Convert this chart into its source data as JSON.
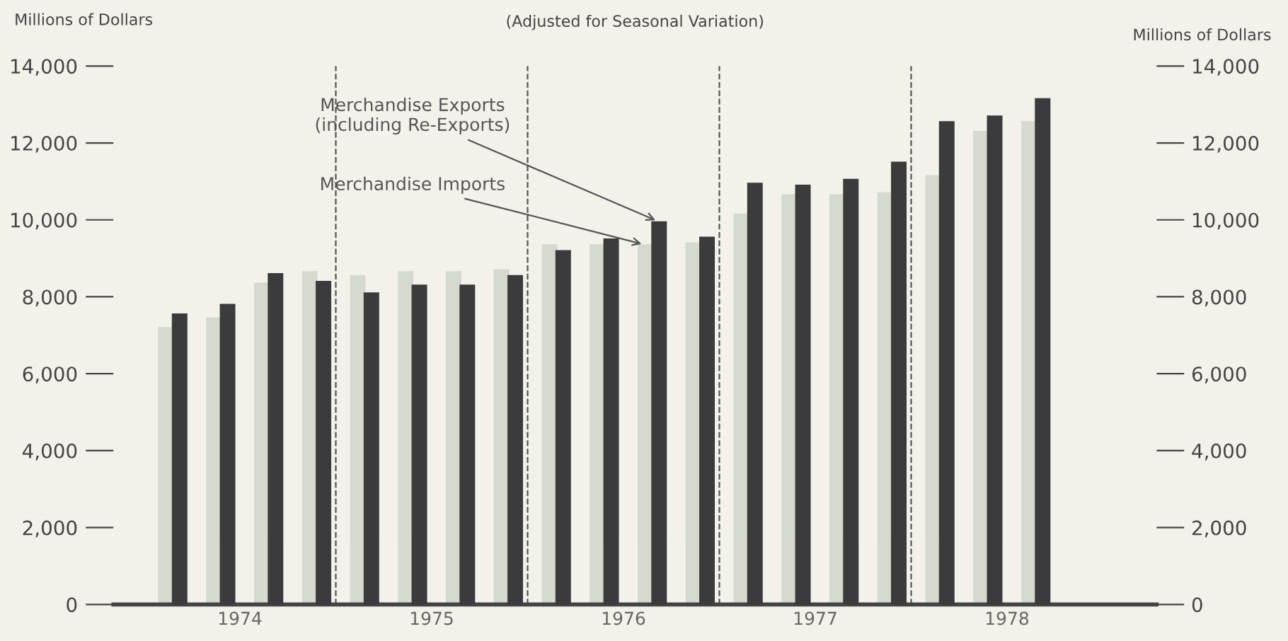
{
  "chart_data": {
    "type": "bar",
    "title": "(Adjusted for Seasonal Variation)",
    "ylabel": "Millions of Dollars",
    "y2label": "Millions of Dollars",
    "x": [
      1974.15,
      1974.4,
      1974.65,
      1974.9,
      1975.15,
      1975.4,
      1975.65,
      1975.9,
      1976.15,
      1976.4,
      1976.65,
      1976.9,
      1977.15,
      1977.4,
      1977.65,
      1977.9,
      1978.15,
      1978.4,
      1978.65
    ],
    "series": [
      {
        "name": "Merchandise Imports",
        "color": "#d6d9cf",
        "values": [
          7200,
          7450,
          8350,
          8650,
          8550,
          8650,
          8650,
          8700,
          9350,
          9350,
          9350,
          9400,
          10150,
          10650,
          10650,
          10700,
          11150,
          12300,
          12550
        ]
      },
      {
        "name": "Merchandise Exports\n(including Re-Exports)",
        "color": "#3b3b3d",
        "values": [
          7550,
          7800,
          8600,
          8400,
          8100,
          8300,
          8300,
          8550,
          9200,
          9500,
          9950,
          9550,
          10950,
          10900,
          11050,
          11500,
          12550,
          12700,
          13150
        ]
      }
    ],
    "xlim": [
      1973.84,
      1979.28
    ],
    "xticks": [
      {
        "value": 1974.5,
        "label": "1974"
      },
      {
        "value": 1975.5,
        "label": "1975"
      },
      {
        "value": 1976.5,
        "label": "1976"
      },
      {
        "value": 1977.5,
        "label": "1977"
      },
      {
        "value": 1978.5,
        "label": "1978"
      }
    ],
    "ylim": [
      0,
      14000
    ],
    "yticks": [
      0,
      {
        "value": 2000,
        "label": "2,000"
      },
      {
        "value": 4000,
        "label": "4,000"
      },
      {
        "value": 6000,
        "label": "6,000"
      },
      {
        "value": 8000,
        "label": "8,000"
      },
      {
        "value": 10000,
        "label": "10,000"
      },
      {
        "value": 12000,
        "label": "12,000"
      },
      {
        "value": 14000,
        "label": "14,000"
      }
    ],
    "y2lim": [
      0,
      14000
    ],
    "y2ticks": [
      0,
      {
        "value": 2000,
        "label": "2,000"
      },
      {
        "value": 4000,
        "label": "4,000"
      },
      {
        "value": 6000,
        "label": "6,000"
      },
      {
        "value": 8000,
        "label": "8,000"
      },
      {
        "value": 10000,
        "label": "10,000"
      },
      {
        "value": 12000,
        "label": "12,000"
      },
      {
        "value": 14000,
        "label": "14,000"
      }
    ],
    "ref_lines": [
      {
        "axis": "x",
        "value": 1975,
        "line_style": "dashed",
        "color": "#555555"
      },
      {
        "axis": "x",
        "value": 1976,
        "line_style": "dashed",
        "color": "#555555"
      },
      {
        "axis": "x",
        "value": 1977,
        "line_style": "dashed",
        "color": "#555555"
      },
      {
        "axis": "x",
        "value": 1978,
        "line_style": "dashed",
        "color": "#555555"
      }
    ],
    "grid": false,
    "legend": false
  }
}
